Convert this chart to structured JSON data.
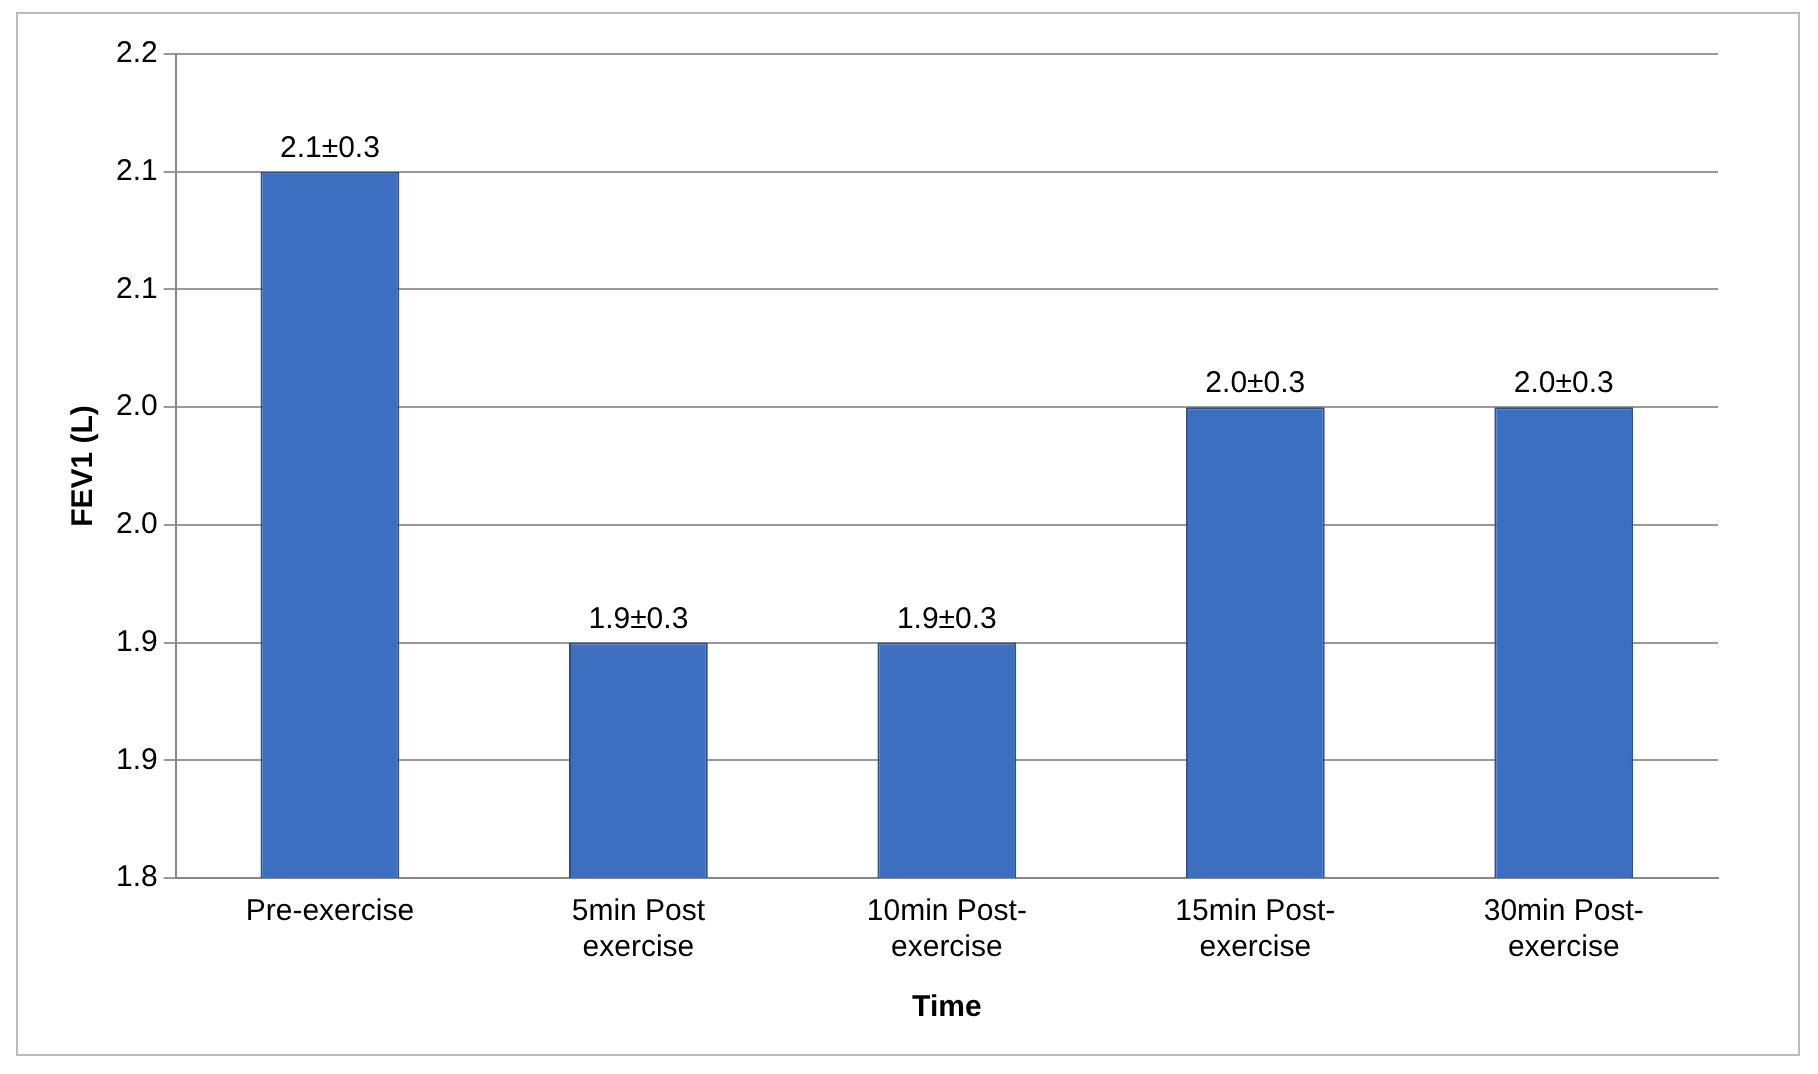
{
  "chart_data": {
    "type": "bar",
    "xlabel": "Time",
    "ylabel": "FEV1 (L)",
    "categories": [
      "Pre-exercise",
      "5min Post exercise",
      "10min Post-exercise",
      "15min Post-exercise",
      "30min Post-exercise"
    ],
    "values": [
      2.1,
      1.9,
      1.9,
      2.0,
      2.0
    ],
    "value_labels": [
      "2.1±0.3",
      "1.9±0.3",
      "1.9±0.3",
      "2.0±0.3",
      "2.0±0.3"
    ],
    "color": "#3c6fbf",
    "ylim": [
      1.8,
      2.15
    ],
    "yticks": [
      {
        "value": 1.8,
        "label": "1.8"
      },
      {
        "value": 1.85,
        "label": "1.9"
      },
      {
        "value": 1.9,
        "label": "1.9"
      },
      {
        "value": 1.95,
        "label": "2.0"
      },
      {
        "value": 2.0,
        "label": "2.0"
      },
      {
        "value": 2.05,
        "label": "2.1"
      },
      {
        "value": 2.1,
        "label": "2.1"
      },
      {
        "value": 2.15,
        "label": "2.2"
      }
    ],
    "grid": "y"
  }
}
